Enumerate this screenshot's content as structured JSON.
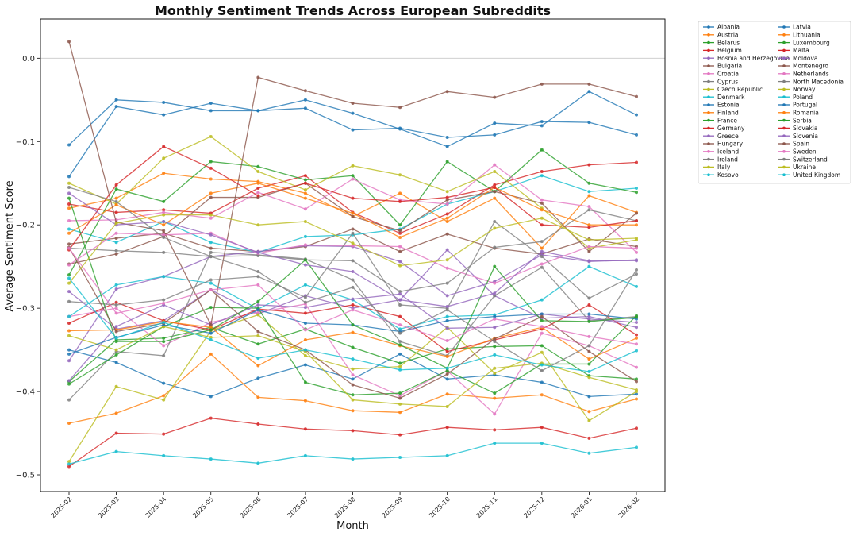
{
  "chart_data": {
    "type": "line",
    "title": "Monthly Sentiment Trends Across European Subreddits",
    "xlabel": "Month",
    "ylabel": "Average Sentiment Score",
    "ylim": [
      -0.52,
      0.047
    ],
    "yticks": [
      0.0,
      -0.1,
      -0.2,
      -0.3,
      -0.4,
      -0.5
    ],
    "ytick_labels": [
      "0.0",
      "−0.1",
      "−0.2",
      "−0.3",
      "−0.4",
      "−0.5"
    ],
    "grid": "horizontal line at y = 0",
    "legend_position": "outside right, top, two columns",
    "x": [
      "2025-02",
      "2025-03",
      "2025-04",
      "2025-05",
      "2025-06",
      "2025-07",
      "2025-08",
      "2025-09",
      "2025-10",
      "2025-11",
      "2025-12",
      "2026-01",
      "2026-02"
    ],
    "series": [
      {
        "name": "Albania",
        "color": "#1f77b4",
        "values": [
          -0.35,
          -0.365,
          -0.39,
          -0.406,
          -0.384,
          -0.368,
          -0.385,
          -0.355,
          -0.385,
          -0.38,
          -0.389,
          -0.406,
          -0.403
        ]
      },
      {
        "name": "Austria",
        "color": "#ff7f0e",
        "values": [
          -0.438,
          -0.426,
          -0.405,
          -0.355,
          -0.407,
          -0.411,
          -0.423,
          -0.425,
          -0.403,
          -0.408,
          -0.404,
          -0.424,
          -0.409
        ]
      },
      {
        "name": "Belarus",
        "color": "#2ca02c",
        "values": [
          -0.388,
          -0.338,
          -0.336,
          -0.323,
          -0.343,
          -0.325,
          -0.347,
          -0.366,
          -0.349,
          -0.346,
          -0.345,
          -0.381,
          -0.385
        ]
      },
      {
        "name": "Belgium",
        "color": "#d62728",
        "values": [
          -0.175,
          -0.185,
          -0.182,
          -0.186,
          -0.156,
          -0.141,
          -0.185,
          -0.21,
          -0.187,
          -0.152,
          -0.136,
          -0.128,
          -0.125
        ]
      },
      {
        "name": "Bosnia and Herzegovina",
        "color": "#9467bd",
        "values": [
          -0.28,
          -0.325,
          -0.315,
          -0.278,
          -0.307,
          -0.285,
          -0.3,
          -0.29,
          -0.23,
          -0.285,
          -0.312,
          -0.31,
          -0.323
        ]
      },
      {
        "name": "Bulgaria",
        "color": "#8c564b",
        "values": [
          -0.223,
          -0.216,
          -0.21,
          -0.228,
          -0.232,
          -0.226,
          -0.205,
          -0.232,
          -0.211,
          -0.228,
          -0.235,
          -0.217,
          -0.226
        ]
      },
      {
        "name": "Croatia",
        "color": "#e377c2",
        "values": [
          -0.31,
          -0.3,
          -0.345,
          -0.317,
          -0.305,
          -0.295,
          -0.38,
          -0.405,
          -0.375,
          -0.427,
          -0.33,
          -0.345,
          -0.371
        ]
      },
      {
        "name": "Cyprus",
        "color": "#7f7f7f",
        "values": [
          -0.41,
          -0.352,
          -0.357,
          -0.233,
          -0.236,
          -0.241,
          -0.266,
          -0.34,
          -0.357,
          -0.285,
          -0.251,
          -0.315,
          -0.31
        ]
      },
      {
        "name": "Czech Republic",
        "color": "#bcbd22",
        "values": [
          -0.484,
          -0.394,
          -0.41,
          -0.327,
          -0.308,
          -0.357,
          -0.373,
          -0.37,
          -0.323,
          -0.378,
          -0.353,
          -0.435,
          -0.4
        ]
      },
      {
        "name": "Denmark",
        "color": "#17becf",
        "values": [
          -0.205,
          -0.221,
          -0.196,
          -0.221,
          -0.233,
          -0.214,
          -0.212,
          -0.205,
          -0.175,
          -0.16,
          -0.141,
          -0.16,
          -0.156
        ]
      },
      {
        "name": "Estonia",
        "color": "#1f77b4",
        "values": [
          -0.142,
          -0.058,
          -0.068,
          -0.054,
          -0.063,
          -0.05,
          -0.066,
          -0.085,
          -0.106,
          -0.078,
          -0.081,
          -0.04,
          -0.068
        ]
      },
      {
        "name": "Finland",
        "color": "#ff7f0e",
        "values": [
          -0.18,
          -0.168,
          -0.138,
          -0.145,
          -0.148,
          -0.162,
          -0.19,
          -0.162,
          -0.196,
          -0.168,
          -0.228,
          -0.165,
          -0.185
        ]
      },
      {
        "name": "France",
        "color": "#2ca02c",
        "values": [
          -0.26,
          -0.157,
          -0.172,
          -0.124,
          -0.13,
          -0.146,
          -0.141,
          -0.2,
          -0.124,
          -0.16,
          -0.11,
          -0.15,
          -0.161
        ]
      },
      {
        "name": "Germany",
        "color": "#d62728",
        "values": [
          -0.318,
          -0.293,
          -0.315,
          -0.326,
          -0.301,
          -0.306,
          -0.296,
          -0.31,
          -0.352,
          -0.338,
          -0.325,
          -0.296,
          -0.332
        ]
      },
      {
        "name": "Greece",
        "color": "#9467bd",
        "values": [
          -0.363,
          -0.277,
          -0.262,
          -0.238,
          -0.232,
          -0.225,
          -0.226,
          -0.244,
          -0.285,
          -0.268,
          -0.236,
          -0.244,
          -0.242
        ]
      },
      {
        "name": "Hungary",
        "color": "#8c564b",
        "values": [
          -0.247,
          -0.235,
          -0.214,
          -0.167,
          -0.167,
          -0.15,
          -0.19,
          -0.207,
          -0.17,
          -0.16,
          -0.174,
          -0.232,
          -0.186
        ]
      },
      {
        "name": "Iceland",
        "color": "#e377c2",
        "values": [
          -0.195,
          -0.194,
          -0.185,
          -0.192,
          -0.161,
          -0.181,
          -0.145,
          -0.17,
          -0.175,
          -0.128,
          -0.17,
          -0.178,
          -0.233
        ]
      },
      {
        "name": "Ireland",
        "color": "#7f7f7f",
        "values": [
          -0.228,
          -0.231,
          -0.233,
          -0.238,
          -0.237,
          -0.242,
          -0.243,
          -0.28,
          -0.27,
          -0.227,
          -0.22,
          -0.182,
          -0.195
        ]
      },
      {
        "name": "Italy",
        "color": "#bcbd22",
        "values": [
          -0.15,
          -0.175,
          -0.12,
          -0.094,
          -0.136,
          -0.158,
          -0.129,
          -0.14,
          -0.16,
          -0.136,
          -0.18,
          -0.228,
          -0.218
        ]
      },
      {
        "name": "Kosovo",
        "color": "#17becf",
        "values": [
          -0.31,
          -0.272,
          -0.262,
          -0.27,
          -0.301,
          -0.272,
          -0.29,
          -0.325,
          -0.31,
          -0.308,
          -0.29,
          -0.25,
          -0.274
        ]
      },
      {
        "name": "Latvia",
        "color": "#1f77b4",
        "values": [
          -0.104,
          -0.05,
          -0.053,
          -0.063,
          -0.063,
          -0.06,
          -0.086,
          -0.084,
          -0.095,
          -0.092,
          -0.076,
          -0.077,
          -0.092
        ]
      },
      {
        "name": "Lithuania",
        "color": "#ff7f0e",
        "values": [
          -0.21,
          -0.176,
          -0.2,
          -0.162,
          -0.15,
          -0.168,
          -0.186,
          -0.215,
          -0.192,
          -0.155,
          -0.182,
          -0.2,
          -0.2
        ]
      },
      {
        "name": "Luxembourg",
        "color": "#2ca02c",
        "values": [
          -0.391,
          -0.356,
          -0.322,
          -0.299,
          -0.3,
          -0.389,
          -0.404,
          -0.402,
          -0.375,
          -0.402,
          -0.367,
          -0.367,
          -0.309
        ]
      },
      {
        "name": "Malta",
        "color": "#d62728",
        "values": [
          -0.49,
          -0.45,
          -0.451,
          -0.432,
          -0.439,
          -0.445,
          -0.447,
          -0.452,
          -0.443,
          -0.446,
          -0.443,
          -0.456,
          -0.444
        ]
      },
      {
        "name": "Moldova",
        "color": "#9467bd",
        "values": [
          -0.387,
          -0.322,
          -0.296,
          -0.32,
          -0.296,
          -0.299,
          -0.289,
          -0.283,
          -0.324,
          -0.323,
          -0.307,
          -0.313,
          -0.317
        ]
      },
      {
        "name": "Montenegro",
        "color": "#8c564b",
        "values": [
          0.02,
          -0.197,
          -0.207,
          -0.32,
          -0.023,
          -0.039,
          -0.054,
          -0.059,
          -0.04,
          -0.047,
          -0.031,
          -0.031,
          -0.046
        ]
      },
      {
        "name": "Netherlands",
        "color": "#e377c2",
        "values": [
          -0.248,
          -0.21,
          -0.212,
          -0.21,
          -0.234,
          -0.224,
          -0.225,
          -0.226,
          -0.252,
          -0.27,
          -0.247,
          -0.226,
          -0.228
        ]
      },
      {
        "name": "North Macedonia",
        "color": "#7f7f7f",
        "values": [
          -0.292,
          -0.296,
          -0.29,
          -0.266,
          -0.262,
          -0.287,
          -0.21,
          -0.296,
          -0.3,
          -0.196,
          -0.238,
          -0.288,
          -0.259
        ]
      },
      {
        "name": "Norway",
        "color": "#bcbd22",
        "values": [
          -0.333,
          -0.35,
          -0.322,
          -0.335,
          -0.333,
          -0.352,
          -0.41,
          -0.415,
          -0.418,
          -0.372,
          -0.366,
          -0.383,
          -0.398
        ]
      },
      {
        "name": "Poland",
        "color": "#17becf",
        "values": [
          -0.487,
          -0.472,
          -0.477,
          -0.481,
          -0.486,
          -0.477,
          -0.481,
          -0.479,
          -0.477,
          -0.462,
          -0.462,
          -0.474,
          -0.467
        ]
      },
      {
        "name": "Portugal",
        "color": "#1f77b4",
        "values": [
          -0.355,
          -0.335,
          -0.32,
          -0.33,
          -0.302,
          -0.318,
          -0.32,
          -0.328,
          -0.315,
          -0.31,
          -0.307,
          -0.307,
          -0.313
        ]
      },
      {
        "name": "Romania",
        "color": "#ff7f0e",
        "values": [
          -0.327,
          -0.326,
          -0.316,
          -0.323,
          -0.369,
          -0.338,
          -0.329,
          -0.345,
          -0.358,
          -0.336,
          -0.323,
          -0.361,
          -0.336
        ]
      },
      {
        "name": "Serbia",
        "color": "#2ca02c",
        "values": [
          -0.168,
          -0.34,
          -0.34,
          -0.326,
          -0.292,
          -0.242,
          -0.32,
          -0.344,
          -0.372,
          -0.25,
          -0.315,
          -0.316,
          -0.311
        ]
      },
      {
        "name": "Slovakia",
        "color": "#d62728",
        "values": [
          -0.23,
          -0.152,
          -0.106,
          -0.132,
          -0.165,
          -0.15,
          -0.168,
          -0.172,
          -0.167,
          -0.155,
          -0.2,
          -0.203,
          -0.195
        ]
      },
      {
        "name": "Slovenia",
        "color": "#9467bd",
        "values": [
          -0.162,
          -0.2,
          -0.196,
          -0.212,
          -0.233,
          -0.248,
          -0.256,
          -0.29,
          -0.298,
          -0.282,
          -0.232,
          -0.243,
          -0.243
        ]
      },
      {
        "name": "Spain",
        "color": "#8c564b",
        "values": [
          -0.227,
          -0.328,
          -0.318,
          -0.278,
          -0.328,
          -0.35,
          -0.392,
          -0.408,
          -0.379,
          -0.337,
          -0.31,
          -0.352,
          -0.388
        ]
      },
      {
        "name": "Sweden",
        "color": "#e377c2",
        "values": [
          -0.228,
          -0.306,
          -0.294,
          -0.278,
          -0.272,
          -0.326,
          -0.302,
          -0.32,
          -0.339,
          -0.313,
          -0.322,
          -0.334,
          -0.343
        ]
      },
      {
        "name": "Switzerland",
        "color": "#7f7f7f",
        "values": [
          -0.155,
          -0.172,
          -0.215,
          -0.238,
          -0.256,
          -0.293,
          -0.275,
          -0.33,
          -0.302,
          -0.34,
          -0.375,
          -0.345,
          -0.254
        ]
      },
      {
        "name": "Ukraine",
        "color": "#bcbd22",
        "values": [
          -0.27,
          -0.198,
          -0.188,
          -0.188,
          -0.2,
          -0.196,
          -0.222,
          -0.249,
          -0.242,
          -0.204,
          -0.192,
          -0.218,
          -0.216
        ]
      },
      {
        "name": "United Kingdom",
        "color": "#17becf",
        "values": [
          -0.264,
          -0.336,
          -0.317,
          -0.338,
          -0.36,
          -0.35,
          -0.361,
          -0.374,
          -0.372,
          -0.356,
          -0.368,
          -0.376,
          -0.351
        ]
      }
    ]
  }
}
